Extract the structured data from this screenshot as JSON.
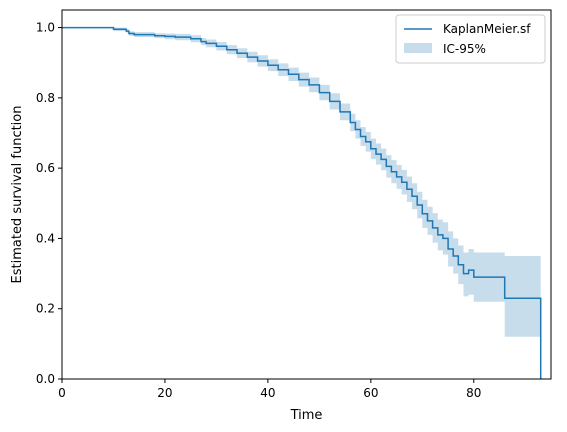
{
  "chart_data": {
    "type": "line",
    "title": "",
    "xlabel": "Time",
    "ylabel": "Estimated survival function",
    "xlim": [
      0,
      95
    ],
    "ylim": [
      0,
      1.05
    ],
    "x_ticks": [
      0,
      20,
      40,
      60,
      80
    ],
    "x_tick_labels": [
      "0",
      "20",
      "40",
      "60",
      "80"
    ],
    "y_ticks": [
      0.0,
      0.2,
      0.4,
      0.6,
      0.8,
      1.0
    ],
    "y_tick_labels": [
      "0.0",
      "0.2",
      "0.4",
      "0.6",
      "0.8",
      "1.0"
    ],
    "grid": false,
    "legend_position": "top-right",
    "series": [
      {
        "name": "KaplanMeier.sf",
        "kind": "step",
        "color": "#1f77b4",
        "x": [
          0,
          10,
          12.5,
          13,
          14,
          18,
          20,
          22,
          25,
          27,
          28,
          30,
          32,
          34,
          36,
          38,
          40,
          42,
          44,
          46,
          48,
          50,
          52,
          54,
          56,
          57,
          58,
          59,
          60,
          61,
          62,
          63,
          64,
          65,
          66,
          67,
          68,
          69,
          70,
          71,
          72,
          73,
          74,
          75,
          76,
          77,
          78,
          79,
          80,
          86,
          92.5,
          93
        ],
        "y": [
          1.0,
          0.995,
          0.99,
          0.983,
          0.98,
          0.977,
          0.975,
          0.973,
          0.968,
          0.96,
          0.955,
          0.947,
          0.937,
          0.927,
          0.916,
          0.905,
          0.893,
          0.88,
          0.867,
          0.852,
          0.837,
          0.815,
          0.79,
          0.76,
          0.73,
          0.71,
          0.69,
          0.675,
          0.655,
          0.64,
          0.625,
          0.605,
          0.59,
          0.575,
          0.56,
          0.54,
          0.52,
          0.495,
          0.47,
          0.45,
          0.43,
          0.41,
          0.4,
          0.37,
          0.35,
          0.325,
          0.3,
          0.31,
          0.29,
          0.23,
          0.23,
          0.0
        ]
      },
      {
        "name": "IC-95%",
        "kind": "band",
        "color": "#1f77b4",
        "opacity": 0.25,
        "x": [
          0,
          10,
          12.5,
          13,
          14,
          18,
          20,
          22,
          25,
          27,
          28,
          30,
          32,
          34,
          36,
          38,
          40,
          42,
          44,
          46,
          48,
          50,
          52,
          54,
          56,
          57,
          58,
          59,
          60,
          61,
          62,
          63,
          64,
          65,
          66,
          67,
          68,
          69,
          70,
          71,
          72,
          73,
          74,
          75,
          76,
          77,
          78,
          79,
          80,
          86,
          92.5
        ],
        "lower": [
          1.0,
          0.99,
          0.985,
          0.977,
          0.973,
          0.97,
          0.967,
          0.964,
          0.958,
          0.95,
          0.944,
          0.935,
          0.924,
          0.913,
          0.901,
          0.889,
          0.876,
          0.862,
          0.848,
          0.832,
          0.816,
          0.793,
          0.767,
          0.736,
          0.705,
          0.684,
          0.663,
          0.647,
          0.626,
          0.61,
          0.594,
          0.573,
          0.557,
          0.541,
          0.525,
          0.504,
          0.483,
          0.457,
          0.43,
          0.41,
          0.388,
          0.366,
          0.354,
          0.32,
          0.3,
          0.27,
          0.235,
          0.24,
          0.22,
          0.12,
          0.12
        ],
        "upper": [
          1.0,
          1.0,
          0.995,
          0.989,
          0.987,
          0.984,
          0.983,
          0.982,
          0.978,
          0.97,
          0.966,
          0.959,
          0.95,
          0.941,
          0.931,
          0.921,
          0.91,
          0.898,
          0.886,
          0.872,
          0.858,
          0.837,
          0.813,
          0.784,
          0.755,
          0.736,
          0.717,
          0.703,
          0.684,
          0.67,
          0.656,
          0.637,
          0.623,
          0.609,
          0.595,
          0.576,
          0.557,
          0.533,
          0.51,
          0.49,
          0.472,
          0.454,
          0.446,
          0.42,
          0.4,
          0.38,
          0.36,
          0.37,
          0.36,
          0.35,
          0.35
        ]
      }
    ]
  }
}
